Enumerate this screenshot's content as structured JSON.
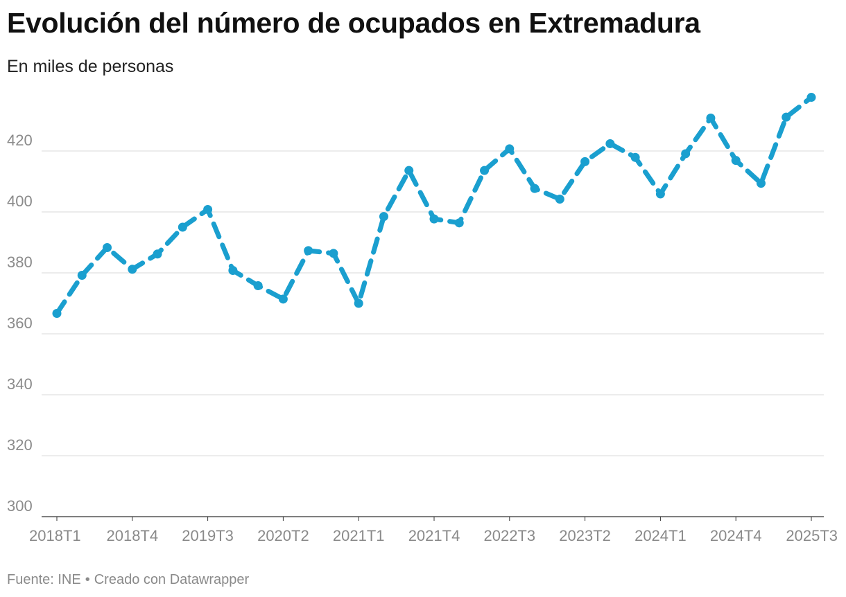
{
  "header": {
    "title": "Evolución del número de ocupados en Extremadura",
    "subtitle": "En miles de personas"
  },
  "footer": {
    "source": "Fuente: INE",
    "separator": "•",
    "credit": "Creado con Datawrapper"
  },
  "colors": {
    "line": "#1a9fcf",
    "grid": "#e0e0e0",
    "axis": "#333333",
    "tick_text": "#8a8a8a"
  },
  "chart_data": {
    "type": "line",
    "title": "Evolución del número de ocupados en Extremadura",
    "subtitle": "En miles de personas",
    "xlabel": "",
    "ylabel": "",
    "ylim": [
      300,
      440
    ],
    "yticks": [
      300,
      320,
      340,
      360,
      380,
      400,
      420
    ],
    "grid": true,
    "line_style": "dashed with dot markers",
    "x": [
      "2018T1",
      "2018T2",
      "2018T3",
      "2018T4",
      "2019T1",
      "2019T2",
      "2019T3",
      "2019T4",
      "2020T1",
      "2020T2",
      "2020T3",
      "2020T4",
      "2021T1",
      "2021T2",
      "2021T3",
      "2021T4",
      "2022T1",
      "2022T2",
      "2022T3",
      "2022T4",
      "2023T1",
      "2023T2",
      "2023T3",
      "2023T4",
      "2024T1",
      "2024T2",
      "2024T3",
      "2024T4",
      "2025T1",
      "2025T2",
      "2025T3"
    ],
    "xticks": [
      "2018T1",
      "2018T4",
      "2019T3",
      "2020T2",
      "2021T1",
      "2021T4",
      "2022T3",
      "2023T2",
      "2024T1",
      "2024T4",
      "2025T3"
    ],
    "series": [
      {
        "values": [
          366.7,
          379.2,
          388.3,
          381.2,
          386.2,
          395.0,
          400.8,
          380.8,
          375.8,
          371.4,
          387.3,
          386.4,
          370.0,
          398.5,
          413.6,
          397.7,
          396.4,
          413.6,
          420.7,
          407.7,
          404.2,
          416.5,
          422.4,
          417.9,
          405.9,
          419.1,
          430.8,
          416.9,
          409.4,
          431.1,
          437.6
        ]
      }
    ]
  }
}
